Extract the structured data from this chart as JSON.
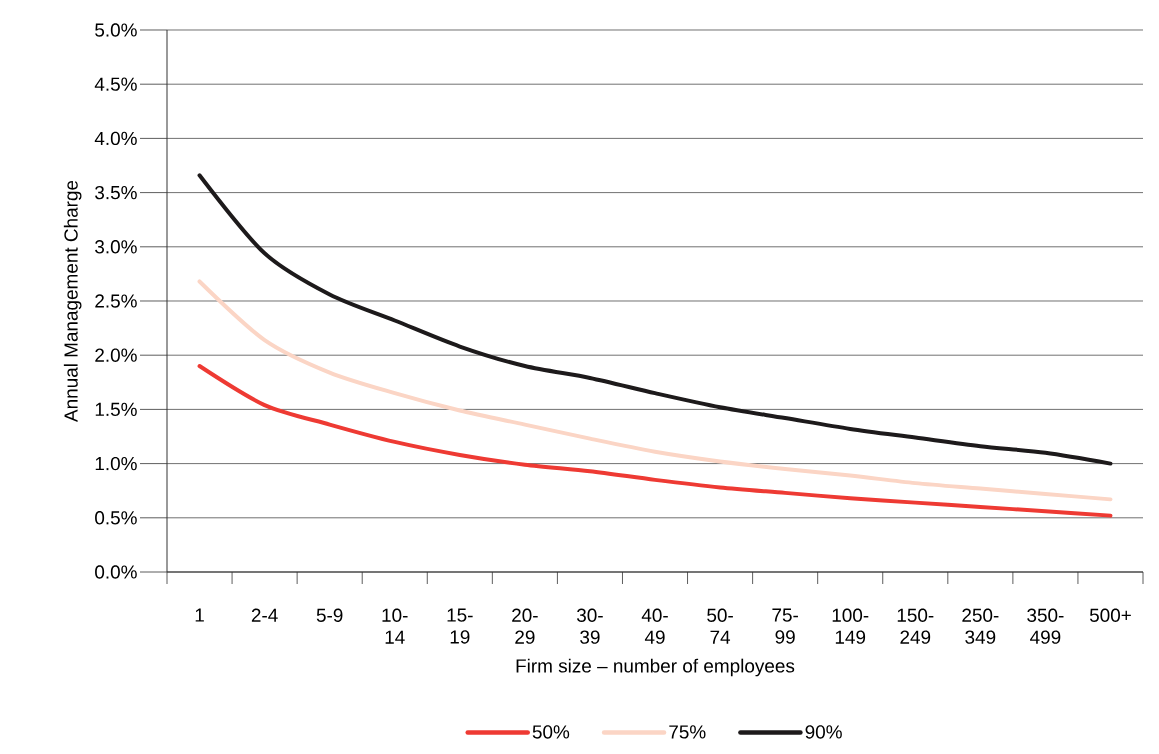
{
  "chart_data": {
    "type": "line",
    "xlabel": "Firm size – number of employees",
    "ylabel": "Annual Management Charge",
    "categories": [
      "1",
      "2-4",
      "5-9",
      "10-14",
      "15-19",
      "20-29",
      "30-39",
      "40-49",
      "50-74",
      "75-99",
      "100-149",
      "150-249",
      "250-349",
      "350-499",
      "500+"
    ],
    "series": [
      {
        "name": "50%",
        "color": "#ee3a33",
        "values": [
          1.9,
          1.54,
          1.36,
          1.2,
          1.08,
          0.99,
          0.93,
          0.85,
          0.78,
          0.73,
          0.68,
          0.64,
          0.6,
          0.56,
          0.52
        ]
      },
      {
        "name": "75%",
        "color": "#fbd5c5",
        "values": [
          2.68,
          2.14,
          1.84,
          1.65,
          1.49,
          1.36,
          1.23,
          1.11,
          1.02,
          0.95,
          0.89,
          0.82,
          0.77,
          0.72,
          0.67
        ]
      },
      {
        "name": "90%",
        "color": "#1d1a1b",
        "values": [
          3.66,
          2.94,
          2.56,
          2.32,
          2.08,
          1.9,
          1.79,
          1.65,
          1.52,
          1.42,
          1.32,
          1.24,
          1.16,
          1.1,
          1.0
        ]
      }
    ],
    "ylim": [
      0,
      5
    ],
    "yticks": [
      {
        "value": 0,
        "label": "0.0%"
      },
      {
        "value": 0.5,
        "label": "0.5%"
      },
      {
        "value": 1,
        "label": "1.0%"
      },
      {
        "value": 1.5,
        "label": "1.5%"
      },
      {
        "value": 2,
        "label": "2.0%"
      },
      {
        "value": 2.5,
        "label": "2.5%"
      },
      {
        "value": 3,
        "label": "3.0%"
      },
      {
        "value": 3.5,
        "label": "3.5%"
      },
      {
        "value": 4,
        "label": "4.0%"
      },
      {
        "value": 4.5,
        "label": "4.5%"
      },
      {
        "value": 5,
        "label": "5.0%"
      }
    ],
    "grid": "y",
    "legend": "bottom",
    "marker": "none",
    "line_style": "solid"
  }
}
